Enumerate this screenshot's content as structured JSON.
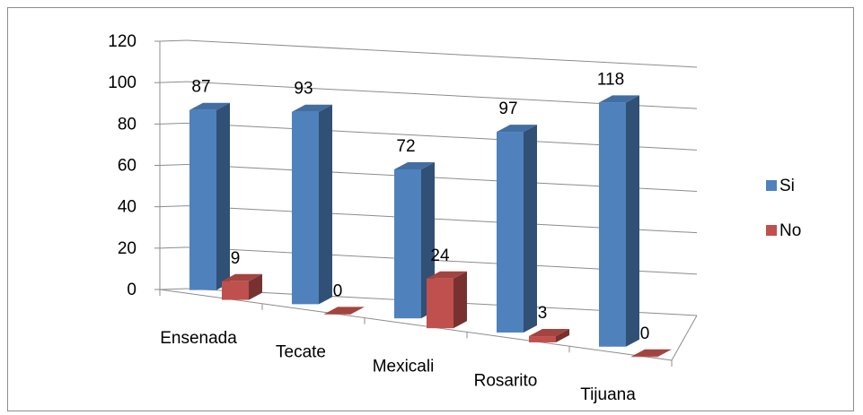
{
  "chart_data": {
    "type": "bar",
    "title": "",
    "xlabel": "",
    "ylabel": "",
    "categories": [
      "Ensenada",
      "Tecate",
      "Mexicali",
      "Rosarito",
      "Tijuana"
    ],
    "series": [
      {
        "name": "Si",
        "values": [
          87,
          93,
          72,
          97,
          118
        ],
        "color": "#4F81BD"
      },
      {
        "name": "No",
        "values": [
          9,
          0,
          24,
          3,
          0
        ],
        "color": "#C0504D"
      }
    ],
    "ylim": [
      0,
      120
    ],
    "yticks": [
      0,
      20,
      40,
      60,
      80,
      100,
      120
    ],
    "ytick_labels": [
      "0",
      "20",
      "40",
      "60",
      "80",
      "100",
      "120"
    ],
    "grid": true,
    "legend": "right",
    "style": "3d-clustered-column"
  }
}
